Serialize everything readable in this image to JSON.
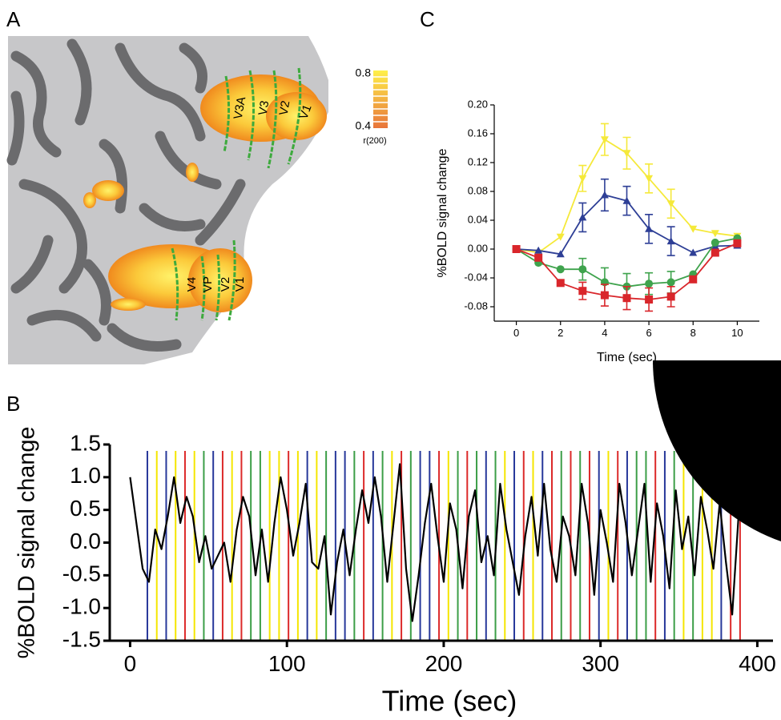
{
  "brain_map": {
    "panel": "A",
    "labels": [
      "V3A",
      "V3",
      "V2",
      "V1",
      "V4",
      "VP",
      "V2",
      "V1"
    ],
    "colorbar": {
      "max": 0.8,
      "min": 0.4,
      "label": "r(200)"
    }
  },
  "chart_data": [
    {
      "type": "line",
      "panel": "C",
      "x_label": "Time (sec)",
      "y_label": "%BOLD signal change",
      "x": [
        0,
        1,
        2,
        3,
        4,
        5,
        6,
        7,
        8,
        9,
        10
      ],
      "series": [
        {
          "color": "#f5e93a",
          "marker": "triangle-down",
          "values": [
            0,
            -0.005,
            0.017,
            0.098,
            0.152,
            0.133,
            0.098,
            0.063,
            0.028,
            0.022,
            0.018
          ],
          "errors": [
            null,
            null,
            null,
            0.018,
            0.022,
            0.022,
            0.02,
            0.02,
            null,
            null,
            null
          ]
        },
        {
          "color": "#2e3f96",
          "marker": "triangle-up",
          "values": [
            0,
            -0.002,
            -0.007,
            0.044,
            0.075,
            0.067,
            0.028,
            0.011,
            -0.005,
            0.004,
            0.005
          ],
          "errors": [
            null,
            null,
            null,
            0.02,
            0.022,
            0.02,
            0.02,
            0.02,
            null,
            null,
            null
          ]
        },
        {
          "color": "#3fa34d",
          "marker": "circle",
          "values": [
            0,
            -0.019,
            -0.028,
            -0.028,
            -0.046,
            -0.052,
            -0.048,
            -0.046,
            -0.035,
            0.009,
            0.015
          ],
          "errors": [
            null,
            null,
            null,
            0.015,
            0.02,
            0.018,
            0.015,
            0.015,
            null,
            null,
            null
          ]
        },
        {
          "color": "#d9262b",
          "marker": "square",
          "values": [
            0,
            -0.012,
            -0.047,
            -0.058,
            -0.064,
            -0.068,
            -0.07,
            -0.066,
            -0.042,
            -0.005,
            0.008
          ],
          "errors": [
            null,
            null,
            null,
            0.012,
            0.015,
            0.016,
            0.016,
            0.014,
            null,
            null,
            null
          ]
        }
      ],
      "xlim": [
        -1,
        11
      ],
      "ylim": [
        -0.1,
        0.2
      ],
      "xticks": [
        0,
        2,
        4,
        6,
        8,
        10
      ],
      "yticks": [
        {
          "value": 0.2,
          "label": "0.20"
        },
        0.16,
        0.12,
        0.08,
        0.04,
        {
          "value": 0,
          "label": "0.00"
        },
        -0.04,
        -0.08
      ]
    },
    {
      "type": "line",
      "panel": "B",
      "x_label": "Time (sec)",
      "y_label": "%BOLD signal change",
      "x": [
        0,
        4,
        8,
        12,
        16,
        20,
        24,
        28,
        32,
        36,
        40,
        44,
        48,
        52,
        56,
        60,
        64,
        68,
        72,
        76,
        80,
        84,
        88,
        92,
        96,
        100,
        104,
        108,
        112,
        116,
        120,
        124,
        128,
        132,
        136,
        140,
        144,
        148,
        152,
        156,
        160,
        164,
        168,
        172,
        176,
        180,
        184,
        188,
        192,
        196,
        200,
        204,
        208,
        212,
        216,
        220,
        224,
        228,
        232,
        236,
        240,
        244,
        248,
        252,
        256,
        260,
        264,
        268,
        272,
        276,
        280,
        284,
        288,
        292,
        296,
        300,
        304,
        308,
        312,
        316,
        320,
        324,
        328,
        332,
        336,
        340,
        344,
        348,
        352,
        356,
        360,
        364,
        368,
        372,
        376,
        380,
        384,
        388,
        392,
        396
      ],
      "series": [
        {
          "color": "#000000",
          "values": [
            1.0,
            0.3,
            -0.4,
            -0.6,
            0.2,
            -0.1,
            0.4,
            1.0,
            0.3,
            0.7,
            0.4,
            -0.3,
            0.1,
            -0.4,
            -0.2,
            0.0,
            -0.6,
            0.2,
            0.7,
            0.4,
            -0.5,
            0.2,
            -0.6,
            0.3,
            1.0,
            0.5,
            -0.2,
            0.3,
            0.9,
            -0.3,
            -0.4,
            0.1,
            -1.1,
            -0.3,
            0.2,
            -0.5,
            0.2,
            0.8,
            0.3,
            1.0,
            0.4,
            -0.6,
            0.3,
            1.2,
            -0.4,
            -1.2,
            -0.5,
            0.3,
            0.9,
            0.1,
            -0.6,
            0.6,
            0.2,
            -0.7,
            0.4,
            0.8,
            -0.3,
            0.1,
            -0.5,
            0.9,
            0.2,
            -0.3,
            -0.8,
            0.1,
            0.7,
            -0.2,
            0.9,
            -0.1,
            -0.6,
            0.4,
            0.1,
            -0.5,
            0.9,
            0.3,
            -0.8,
            0.5,
            0.0,
            -0.6,
            0.9,
            0.3,
            -0.5,
            0.2,
            0.9,
            -0.6,
            0.6,
            0.1,
            -0.7,
            0.8,
            -0.1,
            0.4,
            -0.5,
            0.7,
            0.2,
            -0.4,
            0.6,
            -0.3,
            -1.1,
            0.4,
            0.7,
            0.3
          ]
        }
      ],
      "event_times": [
        11,
        17,
        23,
        29,
        35,
        41,
        47,
        53,
        59,
        65,
        71,
        77,
        83,
        89,
        95,
        101,
        107,
        113,
        119,
        125,
        131,
        137,
        143,
        149,
        155,
        161,
        167,
        173,
        179,
        185,
        191,
        197,
        203,
        209,
        215,
        221,
        227,
        233,
        239,
        245,
        251,
        257,
        263,
        269,
        275,
        281,
        287,
        293,
        299,
        305,
        311,
        317,
        323,
        329,
        335,
        341,
        347,
        353,
        359,
        365,
        371,
        377,
        383,
        389
      ],
      "event_colors": [
        "#27389a",
        "#f5e600",
        "#27389a",
        "#f5e600",
        "#dc2a2a",
        "#f5e600",
        "#3c9e47",
        "#27389a",
        "#dc2a2a",
        "#f5e600",
        "#dc2a2a",
        "#3c9e47",
        "#3c9e47",
        "#f5e600",
        "#f5e600",
        "#dc2a2a",
        "#f5e600",
        "#27389a",
        "#f5e600",
        "#3c9e47",
        "#27389a",
        "#27389a",
        "#3c9e47",
        "#dc2a2a",
        "#27389a",
        "#3c9e47",
        "#f5e600",
        "#dc2a2a",
        "#3c9e47",
        "#27389a",
        "#27389a",
        "#dc2a2a",
        "#f5e600",
        "#3c9e47",
        "#dc2a2a",
        "#3c9e47",
        "#27389a",
        "#3c9e47",
        "#f5e600",
        "#27389a",
        "#dc2a2a",
        "#f5e600",
        "#27389a",
        "#dc2a2a",
        "#3c9e47",
        "#dc2a2a",
        "#3c9e47",
        "#dc2a2a",
        "#27389a",
        "#f5e600",
        "#dc2a2a",
        "#27389a",
        "#3c9e47",
        "#3c9e47",
        "#dc2a2a",
        "#27389a",
        "#3c9e47",
        "#f5e600",
        "#3c9e47",
        "#f5e600",
        "#f5e600",
        "#27389a",
        "#dc2a2a",
        "#dc2a2a"
      ],
      "xlim": [
        -13,
        410
      ],
      "ylim": [
        -1.5,
        1.5
      ],
      "xticks": [
        0,
        100,
        200,
        300,
        400
      ],
      "yticks": [
        1.5,
        {
          "value": 1,
          "label": "1.0"
        },
        0.5,
        {
          "value": 0,
          "label": "0.0"
        },
        -0.5,
        {
          "value": -1,
          "label": "-1.0"
        },
        -1.5
      ]
    }
  ]
}
